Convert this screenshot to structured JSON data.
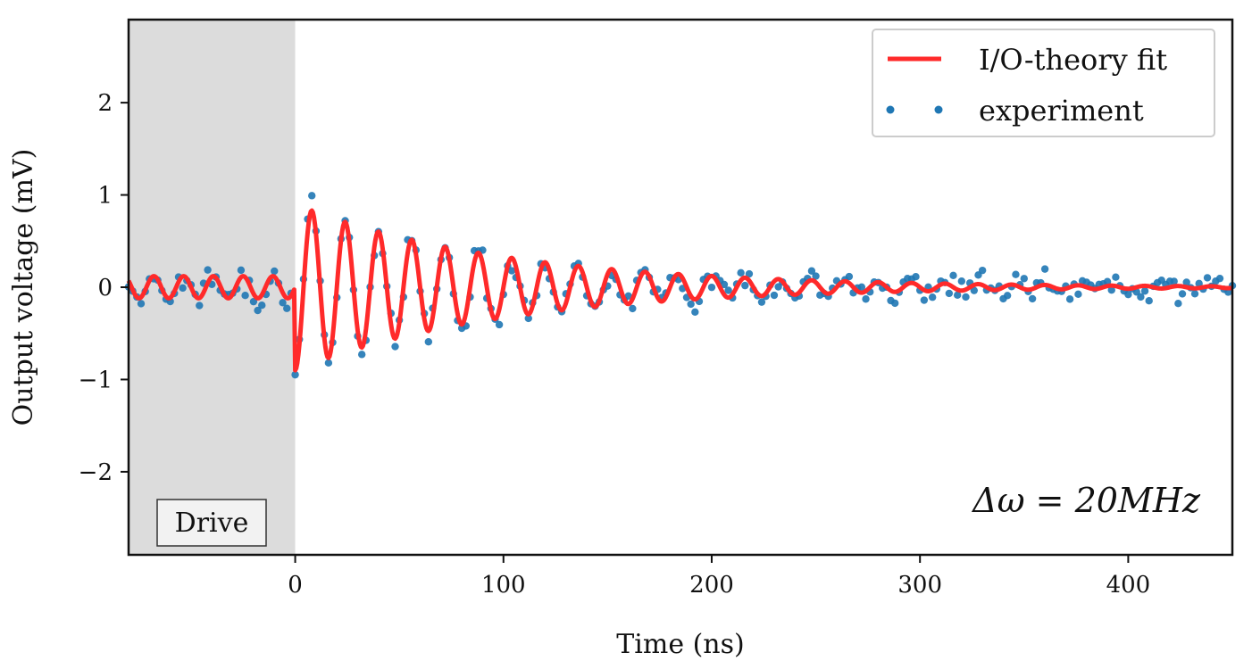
{
  "chart_data": {
    "type": "line",
    "title": "",
    "xlabel": "Time (ns)",
    "ylabel": "Output voltage (mV)",
    "xlim": [
      -80,
      450
    ],
    "ylim": [
      -2.9,
      2.9
    ],
    "xticks": [
      0,
      100,
      200,
      300,
      400
    ],
    "xtick_labels": [
      "0",
      "100",
      "200",
      "300",
      "400"
    ],
    "yticks": [
      -2,
      -1,
      0,
      1,
      2
    ],
    "ytick_labels": [
      "−2",
      "−1",
      "0",
      "1",
      "2"
    ],
    "grid": false,
    "legend_position": "top-right",
    "shaded_region": {
      "x_start": -80,
      "x_end": 0,
      "label": "Drive",
      "color": "#dcdcdc"
    },
    "annotation": "Δω = 20MHz",
    "series": [
      {
        "name": "I/O-theory fit",
        "style": "line",
        "color": "#ff2a2a",
        "model": {
          "pre_drive": {
            "amplitude": 0.12,
            "frequency_ghz": 0.07,
            "phase": 0.0
          },
          "ringdown": {
            "amplitude": 0.9,
            "tau_ns": 100,
            "frequency_ghz": 0.0625,
            "phase": -1.57
          }
        }
      },
      {
        "name": "experiment",
        "style": "scatter",
        "color": "#1f77b4",
        "x_start": -80,
        "x_step": 2,
        "noise_sd": 0.1,
        "points_count": 266
      }
    ]
  }
}
